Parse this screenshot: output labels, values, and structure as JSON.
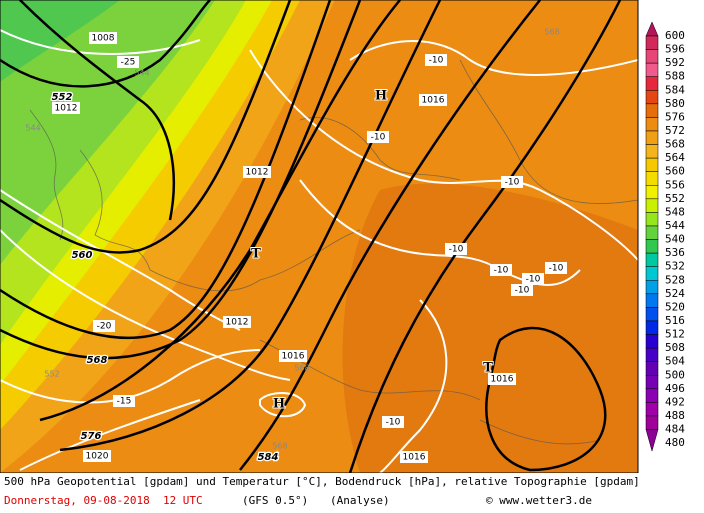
{
  "map_labels": [
    "1008",
    "-25",
    "544",
    "552",
    "1012",
    "544",
    "H",
    "1016",
    "-10",
    "-10",
    "1012",
    "-10",
    "T",
    "-10",
    "-10",
    "-10",
    "-10",
    "-10",
    "1012",
    "-20",
    "560",
    "568",
    "1016",
    "568",
    "-15",
    "552",
    "576",
    "1020",
    "H",
    "568",
    "584",
    "-10",
    "1016",
    "T",
    "1016",
    "568"
  ],
  "legend": {
    "levels": [
      600,
      596,
      592,
      588,
      584,
      580,
      576,
      572,
      568,
      564,
      560,
      556,
      552,
      548,
      544,
      540,
      536,
      532,
      528,
      524,
      520,
      516,
      512,
      508,
      504,
      500,
      496,
      492,
      488,
      484,
      480
    ],
    "colors": [
      "#b4145a",
      "#d2285a",
      "#e64678",
      "#f05a8c",
      "#e6283c",
      "#e64614",
      "#e66e0a",
      "#ec8c12",
      "#f0a014",
      "#f5b41e",
      "#f5c800",
      "#f5dc00",
      "#f0f000",
      "#c8f000",
      "#96e61e",
      "#64d23c",
      "#32c850",
      "#00c8a0",
      "#00c8d2",
      "#00a0e6",
      "#0078f0",
      "#0050f0",
      "#0028e6",
      "#2800d2",
      "#4600c8",
      "#6400b4",
      "#7800b4",
      "#8c00b4",
      "#a000aa",
      "#a0009a",
      "#8c0096"
    ]
  },
  "footer": {
    "line1": "500 hPa Geopotential [gpdam] und Temperatur [°C], Bodendruck [hPa], relative Topographie [gpdam]",
    "date": "Donnerstag, 09-08-2018  12 UTC",
    "model": "(GFS 0.5°)",
    "run": "(Analyse)",
    "copyright": "© www.wetter3.de"
  }
}
